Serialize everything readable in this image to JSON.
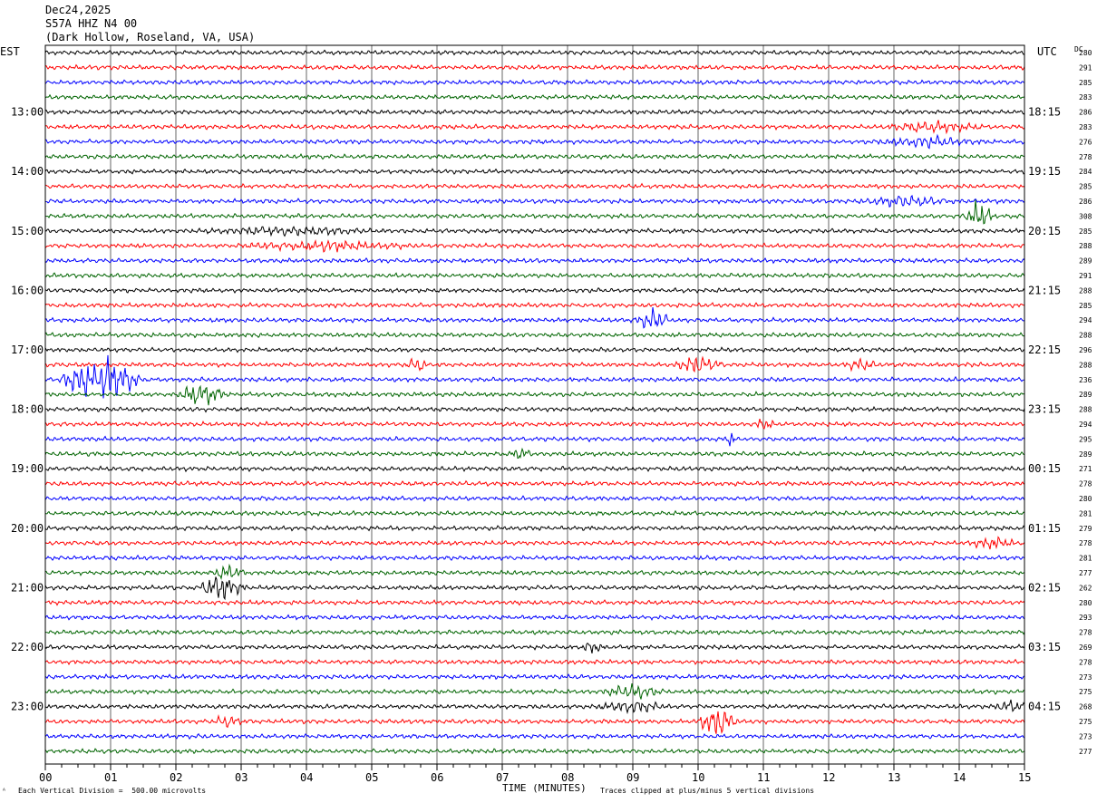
{
  "header": {
    "date": "Dec24,2025",
    "station": "S57A HHZ N4 00",
    "location": "(Dark Hollow, Roseland, VA, USA)"
  },
  "left_tz": "EST",
  "right_tz": "UTC",
  "dc_label": "DC",
  "footer": {
    "scale_note": "Each Vertical Division =  500.00 microvolts",
    "xlabel": "TIME (MINUTES)",
    "clip_note": "Traces clipped at plus/minus 5 vertical divisions",
    "corner_mark": "ᴬ"
  },
  "colors": {
    "trace_cycle": [
      "#000000",
      "#ff0000",
      "#0000ff",
      "#006400"
    ],
    "grid": "#000000"
  },
  "chart_data": {
    "type": "line",
    "title": "",
    "xlabel": "TIME (MINUTES)",
    "ylabel": "",
    "xlim": [
      0,
      15
    ],
    "x_ticks": [
      "00",
      "01",
      "02",
      "03",
      "04",
      "05",
      "06",
      "07",
      "08",
      "09",
      "10",
      "11",
      "12",
      "13",
      "14",
      "15"
    ],
    "left_hour_labels": [
      {
        "row": 4,
        "text": "13:00"
      },
      {
        "row": 8,
        "text": "14:00"
      },
      {
        "row": 12,
        "text": "15:00"
      },
      {
        "row": 16,
        "text": "16:00"
      },
      {
        "row": 20,
        "text": "17:00"
      },
      {
        "row": 24,
        "text": "18:00"
      },
      {
        "row": 28,
        "text": "19:00"
      },
      {
        "row": 32,
        "text": "20:00"
      },
      {
        "row": 36,
        "text": "21:00"
      },
      {
        "row": 40,
        "text": "22:00"
      },
      {
        "row": 44,
        "text": "23:00"
      }
    ],
    "right_hour_labels": [
      {
        "row": 4,
        "text": "18:15"
      },
      {
        "row": 8,
        "text": "19:15"
      },
      {
        "row": 12,
        "text": "20:15"
      },
      {
        "row": 16,
        "text": "21:15"
      },
      {
        "row": 20,
        "text": "22:15"
      },
      {
        "row": 24,
        "text": "23:15"
      },
      {
        "row": 28,
        "text": "00:15"
      },
      {
        "row": 32,
        "text": "01:15"
      },
      {
        "row": 36,
        "text": "02:15"
      },
      {
        "row": 40,
        "text": "03:15"
      },
      {
        "row": 44,
        "text": "04:15"
      }
    ],
    "dc_offsets": [
      280,
      291,
      285,
      283,
      286,
      283,
      276,
      278,
      284,
      285,
      286,
      308,
      285,
      288,
      289,
      291,
      288,
      285,
      294,
      288,
      296,
      288,
      236,
      289,
      288,
      294,
      295,
      289,
      271,
      278,
      280,
      281,
      279,
      278,
      281,
      277,
      262,
      280,
      293,
      278,
      269,
      278,
      273,
      275,
      268,
      275,
      273,
      277
    ],
    "events": [
      {
        "row": 5,
        "minute": 13.6,
        "amp": 0.7,
        "dur": 0.8
      },
      {
        "row": 6,
        "minute": 13.5,
        "amp": 0.6,
        "dur": 1.0
      },
      {
        "row": 10,
        "minute": 13.2,
        "amp": 0.7,
        "dur": 0.8
      },
      {
        "row": 11,
        "minute": 14.3,
        "amp": 2.2,
        "dur": 0.25
      },
      {
        "row": 12,
        "minute": 3.7,
        "amp": 0.5,
        "dur": 1.5
      },
      {
        "row": 13,
        "minute": 4.3,
        "amp": 0.6,
        "dur": 1.5
      },
      {
        "row": 18,
        "minute": 9.3,
        "amp": 1.6,
        "dur": 0.3
      },
      {
        "row": 21,
        "minute": 5.7,
        "amp": 1.0,
        "dur": 0.2
      },
      {
        "row": 21,
        "minute": 10.0,
        "amp": 1.4,
        "dur": 0.4
      },
      {
        "row": 21,
        "minute": 12.5,
        "amp": 0.8,
        "dur": 0.3
      },
      {
        "row": 22,
        "minute": 0.5,
        "amp": 2.4,
        "dur": 0.3
      },
      {
        "row": 22,
        "minute": 1.0,
        "amp": 3.5,
        "dur": 0.5
      },
      {
        "row": 23,
        "minute": 2.4,
        "amp": 1.8,
        "dur": 0.4
      },
      {
        "row": 25,
        "minute": 11.0,
        "amp": 0.7,
        "dur": 0.2
      },
      {
        "row": 26,
        "minute": 10.5,
        "amp": 1.0,
        "dur": 0.1
      },
      {
        "row": 27,
        "minute": 7.3,
        "amp": 0.8,
        "dur": 0.2
      },
      {
        "row": 33,
        "minute": 14.5,
        "amp": 0.8,
        "dur": 0.4
      },
      {
        "row": 35,
        "minute": 2.8,
        "amp": 1.0,
        "dur": 0.3
      },
      {
        "row": 36,
        "minute": 2.7,
        "amp": 1.8,
        "dur": 0.4
      },
      {
        "row": 40,
        "minute": 8.4,
        "amp": 0.9,
        "dur": 0.2
      },
      {
        "row": 43,
        "minute": 9.0,
        "amp": 1.0,
        "dur": 0.5
      },
      {
        "row": 44,
        "minute": 9.0,
        "amp": 0.8,
        "dur": 0.6
      },
      {
        "row": 44,
        "minute": 14.8,
        "amp": 0.9,
        "dur": 0.3
      },
      {
        "row": 45,
        "minute": 10.3,
        "amp": 2.2,
        "dur": 0.35
      },
      {
        "row": 45,
        "minute": 2.8,
        "amp": 0.7,
        "dur": 0.3
      }
    ]
  }
}
